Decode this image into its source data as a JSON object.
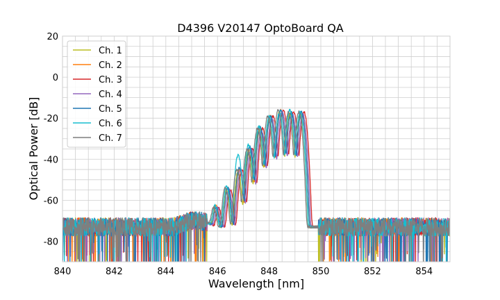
{
  "chart_data": {
    "type": "line",
    "title": "D4396 V20147 OptoBoard QA",
    "xlabel": "Wavelength [nm]",
    "ylabel": "Optical Power [dB]",
    "xlim": [
      840,
      855
    ],
    "ylim": [
      -90,
      20
    ],
    "x_ticks": [
      840,
      842,
      844,
      846,
      848,
      850,
      852,
      854
    ],
    "y_ticks": [
      -80,
      -60,
      -40,
      -20,
      0,
      20
    ],
    "grid": true,
    "legend_position": "upper-left",
    "noise_floor_db": -73,
    "series": [
      {
        "name": "Ch. 1",
        "color": "#bcbd22",
        "peaks": [
          {
            "x": 845.9,
            "y": -64
          },
          {
            "x": 846.35,
            "y": -55
          },
          {
            "x": 846.8,
            "y": -46
          },
          {
            "x": 847.2,
            "y": -36
          },
          {
            "x": 847.6,
            "y": -26
          },
          {
            "x": 848.0,
            "y": -20
          },
          {
            "x": 848.4,
            "y": -17
          },
          {
            "x": 848.8,
            "y": -18
          },
          {
            "x": 849.2,
            "y": -18
          }
        ]
      },
      {
        "name": "Ch. 2",
        "color": "#ff7f0e",
        "peaks": [
          {
            "x": 845.95,
            "y": -63
          },
          {
            "x": 846.4,
            "y": -54
          },
          {
            "x": 846.85,
            "y": -45
          },
          {
            "x": 847.25,
            "y": -35
          },
          {
            "x": 847.65,
            "y": -25
          },
          {
            "x": 848.05,
            "y": -19
          },
          {
            "x": 848.45,
            "y": -16
          },
          {
            "x": 848.85,
            "y": -17
          },
          {
            "x": 849.25,
            "y": -17
          }
        ]
      },
      {
        "name": "Ch. 3",
        "color": "#d62728",
        "peaks": [
          {
            "x": 846.05,
            "y": -64
          },
          {
            "x": 846.5,
            "y": -55
          },
          {
            "x": 846.95,
            "y": -45
          },
          {
            "x": 847.35,
            "y": -35
          },
          {
            "x": 847.75,
            "y": -25
          },
          {
            "x": 848.15,
            "y": -19
          },
          {
            "x": 848.55,
            "y": -16
          },
          {
            "x": 848.95,
            "y": -17
          },
          {
            "x": 849.35,
            "y": -17
          }
        ]
      },
      {
        "name": "Ch. 4",
        "color": "#9467bd",
        "peaks": [
          {
            "x": 846.0,
            "y": -64
          },
          {
            "x": 846.45,
            "y": -55
          },
          {
            "x": 846.9,
            "y": -45
          },
          {
            "x": 847.3,
            "y": -35
          },
          {
            "x": 847.7,
            "y": -26
          },
          {
            "x": 848.1,
            "y": -20
          },
          {
            "x": 848.5,
            "y": -17
          },
          {
            "x": 848.9,
            "y": -18
          },
          {
            "x": 849.3,
            "y": -18
          }
        ]
      },
      {
        "name": "Ch. 5",
        "color": "#1f77b4",
        "peaks": [
          {
            "x": 845.95,
            "y": -64
          },
          {
            "x": 846.4,
            "y": -54
          },
          {
            "x": 846.85,
            "y": -44
          },
          {
            "x": 847.25,
            "y": -34
          },
          {
            "x": 847.65,
            "y": -24
          },
          {
            "x": 848.05,
            "y": -19
          },
          {
            "x": 848.45,
            "y": -16
          },
          {
            "x": 848.85,
            "y": -17
          },
          {
            "x": 849.25,
            "y": -17
          }
        ]
      },
      {
        "name": "Ch. 6",
        "color": "#17becf",
        "peaks": [
          {
            "x": 845.9,
            "y": -63
          },
          {
            "x": 846.35,
            "y": -53
          },
          {
            "x": 846.8,
            "y": -38
          },
          {
            "x": 847.2,
            "y": -33
          },
          {
            "x": 847.6,
            "y": -24
          },
          {
            "x": 848.0,
            "y": -19
          },
          {
            "x": 848.4,
            "y": -17
          },
          {
            "x": 848.8,
            "y": -16
          },
          {
            "x": 849.2,
            "y": -17
          }
        ]
      },
      {
        "name": "Ch. 7",
        "color": "#7f7f7f",
        "peaks": [
          {
            "x": 845.85,
            "y": -64
          },
          {
            "x": 846.3,
            "y": -54
          },
          {
            "x": 846.75,
            "y": -45
          },
          {
            "x": 847.15,
            "y": -35
          },
          {
            "x": 847.55,
            "y": -25
          },
          {
            "x": 847.95,
            "y": -19
          },
          {
            "x": 848.35,
            "y": -16
          },
          {
            "x": 848.75,
            "y": -17
          },
          {
            "x": 849.15,
            "y": -17
          }
        ]
      }
    ]
  }
}
